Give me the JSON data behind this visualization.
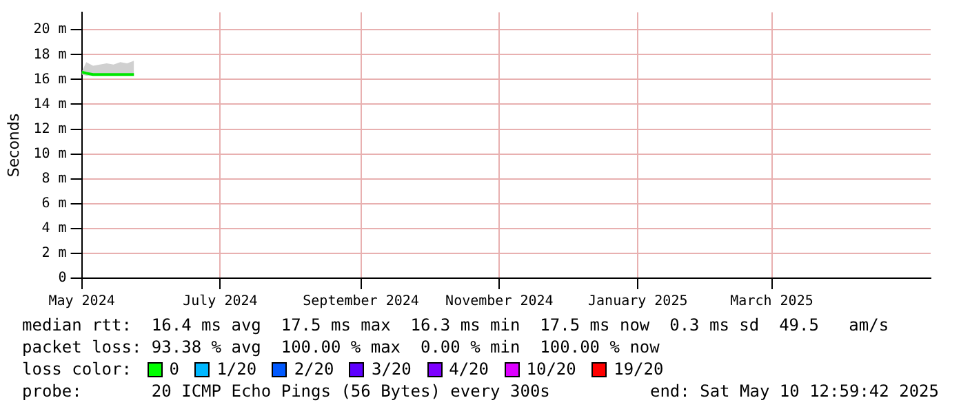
{
  "chart_data": {
    "type": "line",
    "ylabel": "Seconds",
    "x": [
      "2024-05-01",
      "2024-05-03",
      "2024-05-06",
      "2024-05-09",
      "2024-05-12",
      "2024-05-15",
      "2024-05-18",
      "2024-05-21",
      "2024-05-24"
    ],
    "series": [
      {
        "color": "#00e600",
        "values": [
          16.6,
          16.5,
          16.4,
          16.4,
          16.4,
          16.4,
          16.4,
          16.4,
          16.4
        ],
        "lower": [
          16.4,
          16.3,
          16.3,
          16.3,
          16.3,
          16.3,
          16.3,
          16.3,
          16.3
        ],
        "upper": [
          16.6,
          17.4,
          17.1,
          17.2,
          17.3,
          17.2,
          17.4,
          17.3,
          17.5
        ]
      }
    ],
    "xlim": [
      "2024-05-01",
      "2025-05-10"
    ],
    "xticks": [
      {
        "value": "2024-05-01",
        "label": "May 2024"
      },
      {
        "value": "2024-07-01",
        "label": "July 2024"
      },
      {
        "value": "2024-09-01",
        "label": "September 2024"
      },
      {
        "value": "2024-11-01",
        "label": "November 2024"
      },
      {
        "value": "2025-01-01",
        "label": "January 2025"
      },
      {
        "value": "2025-03-01",
        "label": "March 2025"
      }
    ],
    "ylim": [
      0,
      21.4
    ],
    "yticks": [
      {
        "value": 0,
        "label": "0"
      },
      {
        "value": 2,
        "label": "2 m"
      },
      {
        "value": 4,
        "label": "4 m"
      },
      {
        "value": 6,
        "label": "6 m"
      },
      {
        "value": 8,
        "label": "8 m"
      },
      {
        "value": 10,
        "label": "10 m"
      },
      {
        "value": 12,
        "label": "12 m"
      },
      {
        "value": 14,
        "label": "14 m"
      },
      {
        "value": 16,
        "label": "16 m"
      },
      {
        "value": 18,
        "label": "18 m"
      },
      {
        "value": 20,
        "label": "20 m"
      }
    ],
    "grid": true,
    "marker": "none",
    "line_style": "solid",
    "annotations": [
      "median rtt:  16.4 ms avg  17.5 ms max  16.3 ms min  17.5 ms now  0.3 ms sd  49.5   am/s",
      "packet loss: 93.38 % avg  100.00 % max  0.00 % min  100.00 % now",
      "loss color:",
      "0",
      "1/20",
      "2/20",
      "3/20",
      "4/20",
      "10/20",
      "19/20",
      "probe:       20 ICMP Echo Pings (56 Bytes) every 300s",
      "end: Sat May 10 12:59:42 2025"
    ]
  }
}
